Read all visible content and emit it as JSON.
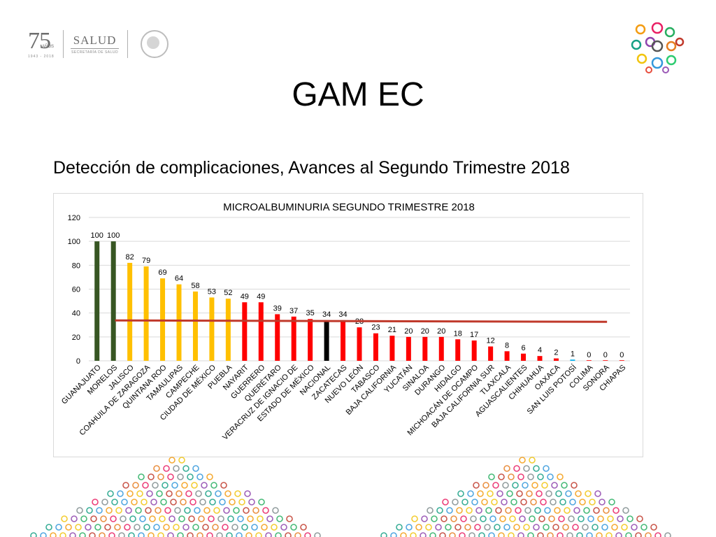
{
  "header": {
    "logo_number": "75",
    "logo_anos": "AÑOS",
    "logo_years": "1943 - 2018",
    "salud": "SALUD",
    "salud_sub": "SECRETARÍA DE SALUD"
  },
  "title": "GAM EC",
  "subtitle": "Detección de complicaciones, Avances al Segundo Trimestre 2018",
  "chart_data": {
    "type": "bar",
    "title": "MICROALBUMINURIA SEGUNDO TRIMESTRE 2018",
    "xlabel": "",
    "ylabel": "",
    "ylim": [
      0,
      120
    ],
    "yticks": [
      0,
      20,
      40,
      60,
      80,
      100,
      120
    ],
    "grid": true,
    "legend": "none",
    "categories": [
      "GUANAJUATO",
      "MORELOS",
      "JALISCO",
      "COAHUILA DE ZARAGOZA",
      "QUINTANA ROO",
      "TAMAULIPAS",
      "CAMPECHE",
      "CIUDAD DE MÉXICO",
      "PUEBLA",
      "NAYARIT",
      "GUERRERO",
      "QUERÉTARO",
      "VERACRUZ DE IGNACIO DE",
      "ESTADO DE MÉXICO",
      "NACIONAL",
      "ZACATECAS",
      "NUEVO LEÓN",
      "TABASCO",
      "BAJA CALIFORNIA",
      "YUCATÁN",
      "SINALOA",
      "DURANGO",
      "HIDALGO",
      "MICHOACÁN DE OCAMPO",
      "BAJA CALIFORNIA SUR",
      "TLAXCALA",
      "AGUASCALIENTES",
      "CHIHUAHUA",
      "OAXACA",
      "SAN LUIS POTOSÍ",
      "COLIMA",
      "SONORA",
      "CHIAPAS"
    ],
    "values": [
      100,
      100,
      82,
      79,
      69,
      64,
      58,
      53,
      52,
      49,
      49,
      39,
      37,
      35,
      34,
      34,
      28,
      23,
      21,
      20,
      20,
      20,
      18,
      17,
      12,
      8,
      6,
      4,
      2,
      1,
      0,
      0,
      0
    ],
    "colors": [
      "#375623",
      "#375623",
      "#ffc000",
      "#ffc000",
      "#ffc000",
      "#ffc000",
      "#ffc000",
      "#ffc000",
      "#ffc000",
      "#ff0000",
      "#ff0000",
      "#ff0000",
      "#ff0000",
      "#ff0000",
      "#000000",
      "#ff0000",
      "#ff0000",
      "#ff0000",
      "#ff0000",
      "#ff0000",
      "#ff0000",
      "#ff0000",
      "#ff0000",
      "#ff0000",
      "#ff0000",
      "#ff0000",
      "#ff0000",
      "#ff0000",
      "#ff0000",
      "#00b0f0",
      "#ff0000",
      "#ff0000",
      "#ff0000"
    ],
    "reference_line": {
      "value": 33.5,
      "color": "#c0392b"
    }
  },
  "colors": {
    "green": "#375623",
    "yellow": "#ffc000",
    "red": "#ff0000",
    "national": "#000000",
    "reference": "#c0392b",
    "gridline": "#d9d9d9"
  },
  "icons": {
    "corner": "colorful-circles-logo",
    "seal": "national-seal-icon"
  }
}
